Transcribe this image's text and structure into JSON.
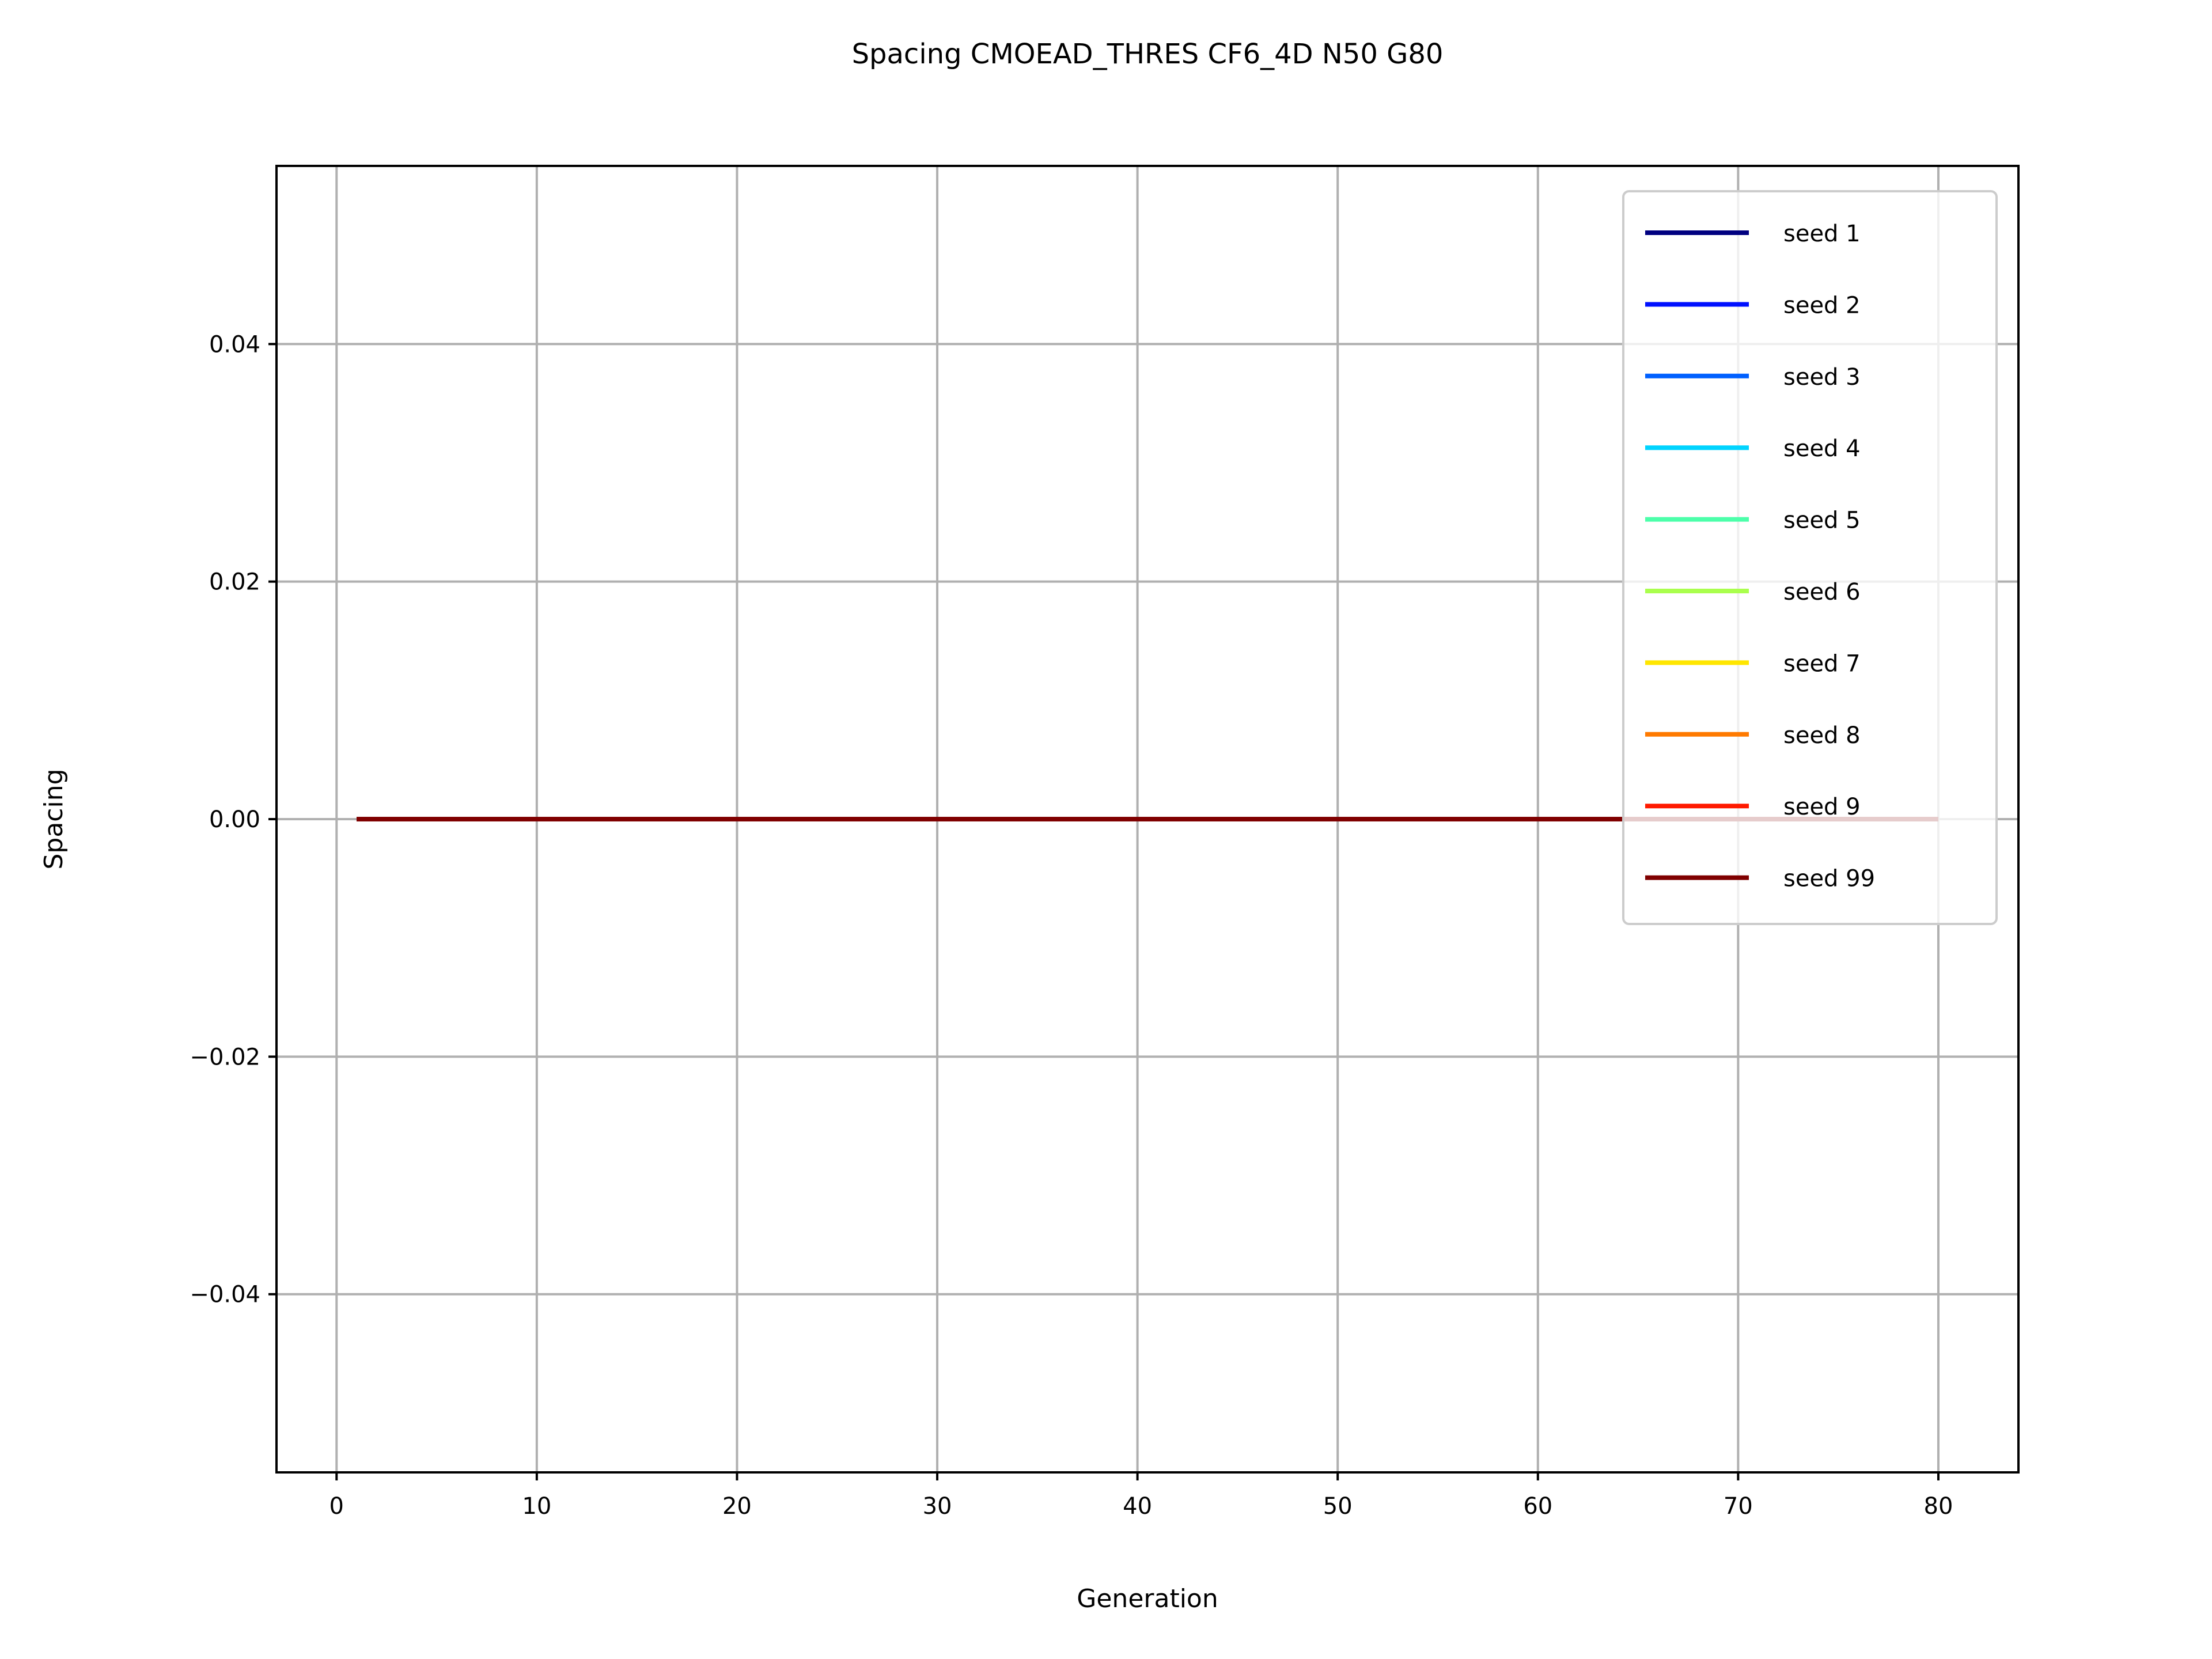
{
  "chart_data": {
    "type": "line",
    "title": "Spacing CMOEAD_THRES CF6_4D N50 G80",
    "xlabel": "Generation",
    "ylabel": "Spacing",
    "xlim": [
      -3,
      84
    ],
    "ylim": [
      -0.055,
      0.055
    ],
    "x_ticks": [
      0,
      10,
      20,
      30,
      40,
      50,
      60,
      70,
      80
    ],
    "x_tick_labels": [
      "0",
      "10",
      "20",
      "30",
      "40",
      "50",
      "60",
      "70",
      "80"
    ],
    "y_ticks": [
      -0.04,
      -0.02,
      0.0,
      0.02,
      0.04
    ],
    "y_tick_labels": [
      "−0.04",
      "−0.02",
      "0.00",
      "0.02",
      "0.04"
    ],
    "grid": true,
    "legend_position": "top-right",
    "x": [
      1,
      80
    ],
    "series": [
      {
        "name": "seed 1",
        "color": "#000080",
        "values": [
          0,
          0
        ]
      },
      {
        "name": "seed 2",
        "color": "#0010ff",
        "values": [
          0,
          0
        ]
      },
      {
        "name": "seed 3",
        "color": "#0060ff",
        "values": [
          0,
          0
        ]
      },
      {
        "name": "seed 4",
        "color": "#00d4ff",
        "values": [
          0,
          0
        ]
      },
      {
        "name": "seed 5",
        "color": "#4cffaa",
        "values": [
          0,
          0
        ]
      },
      {
        "name": "seed 6",
        "color": "#aaff4d",
        "values": [
          0,
          0
        ]
      },
      {
        "name": "seed 7",
        "color": "#ffe600",
        "values": [
          0,
          0
        ]
      },
      {
        "name": "seed 8",
        "color": "#ff7a00",
        "values": [
          0,
          0
        ]
      },
      {
        "name": "seed 9",
        "color": "#ff1a00",
        "values": [
          0,
          0
        ]
      },
      {
        "name": "seed 99",
        "color": "#800000",
        "values": [
          0,
          0
        ]
      }
    ]
  }
}
